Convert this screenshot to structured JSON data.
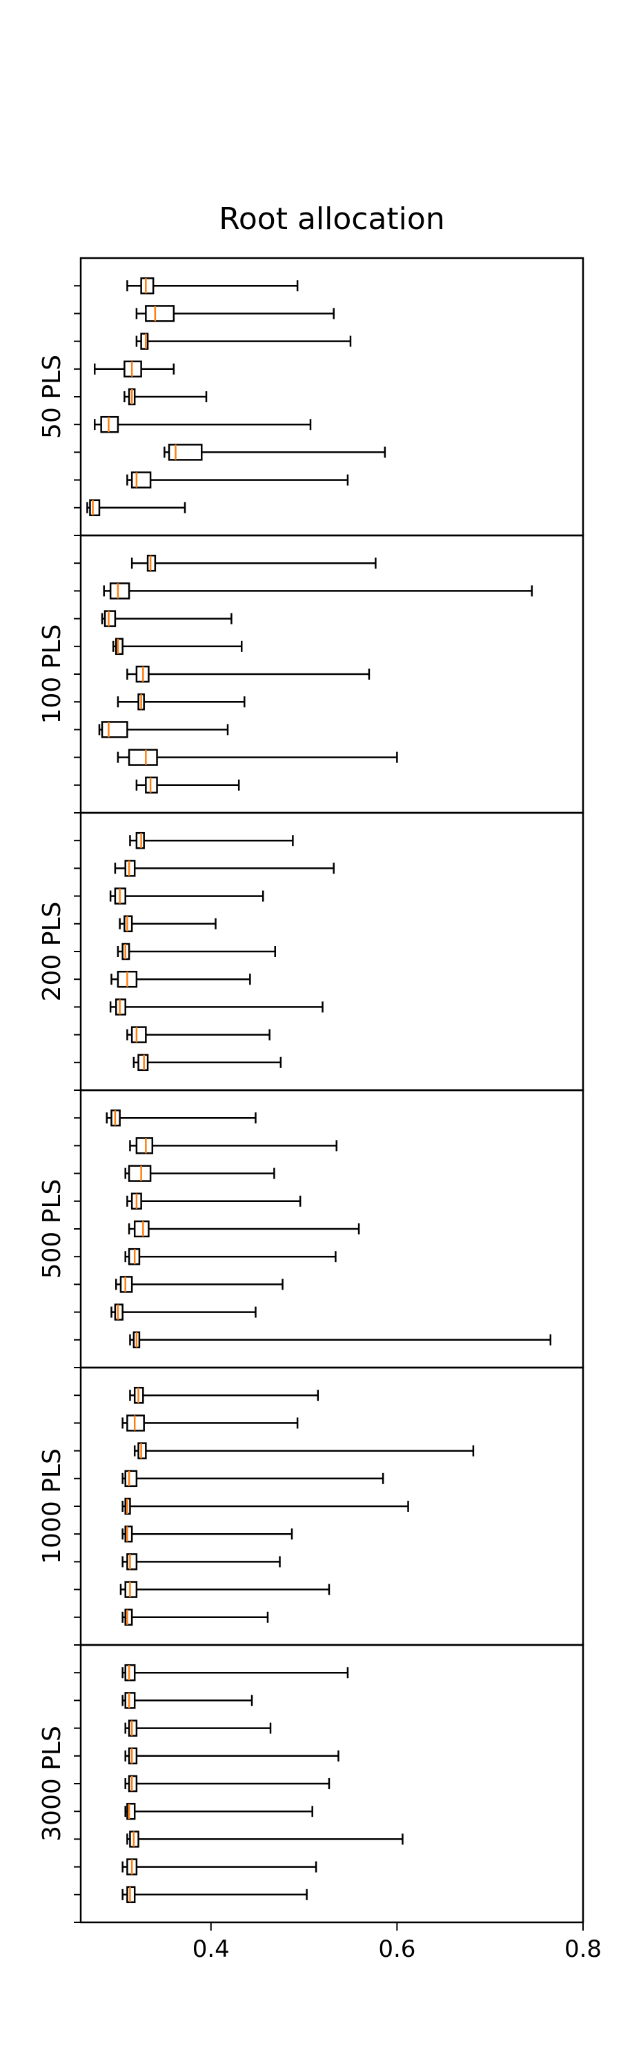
{
  "chart_data": {
    "type": "boxplot",
    "title": "Root allocation",
    "orientation": "horizontal",
    "xlim": [
      0.26,
      0.8
    ],
    "xticks": [
      0.4,
      0.6,
      0.8
    ],
    "xtick_labels": [
      "0.4",
      "0.6",
      "0.8"
    ],
    "median_color": "#ff7f0e",
    "box_color": "#000000",
    "panels": [
      {
        "name": "50 PLS",
        "boxes": [
          {
            "min": 0.31,
            "q1": 0.325,
            "median": 0.33,
            "q3": 0.338,
            "max": 0.493
          },
          {
            "min": 0.32,
            "q1": 0.33,
            "median": 0.34,
            "q3": 0.36,
            "max": 0.532
          },
          {
            "min": 0.32,
            "q1": 0.325,
            "median": 0.33,
            "q3": 0.332,
            "max": 0.55
          },
          {
            "min": 0.275,
            "q1": 0.307,
            "median": 0.315,
            "q3": 0.325,
            "max": 0.36
          },
          {
            "min": 0.307,
            "q1": 0.312,
            "median": 0.315,
            "q3": 0.318,
            "max": 0.395
          },
          {
            "min": 0.275,
            "q1": 0.282,
            "median": 0.29,
            "q3": 0.3,
            "max": 0.507
          },
          {
            "min": 0.35,
            "q1": 0.355,
            "median": 0.362,
            "q3": 0.39,
            "max": 0.587
          },
          {
            "min": 0.31,
            "q1": 0.315,
            "median": 0.32,
            "q3": 0.335,
            "max": 0.547
          },
          {
            "min": 0.267,
            "q1": 0.27,
            "median": 0.273,
            "q3": 0.28,
            "max": 0.372
          }
        ]
      },
      {
        "name": "100 PLS",
        "boxes": [
          {
            "min": 0.315,
            "q1": 0.332,
            "median": 0.335,
            "q3": 0.34,
            "max": 0.577
          },
          {
            "min": 0.285,
            "q1": 0.292,
            "median": 0.3,
            "q3": 0.312,
            "max": 0.745
          },
          {
            "min": 0.283,
            "q1": 0.286,
            "median": 0.29,
            "q3": 0.297,
            "max": 0.422
          },
          {
            "min": 0.295,
            "q1": 0.298,
            "median": 0.3,
            "q3": 0.305,
            "max": 0.433
          },
          {
            "min": 0.31,
            "q1": 0.32,
            "median": 0.327,
            "q3": 0.333,
            "max": 0.57
          },
          {
            "min": 0.3,
            "q1": 0.322,
            "median": 0.325,
            "q3": 0.328,
            "max": 0.436
          },
          {
            "min": 0.28,
            "q1": 0.283,
            "median": 0.29,
            "q3": 0.31,
            "max": 0.418
          },
          {
            "min": 0.3,
            "q1": 0.312,
            "median": 0.33,
            "q3": 0.342,
            "max": 0.6
          },
          {
            "min": 0.32,
            "q1": 0.33,
            "median": 0.335,
            "q3": 0.342,
            "max": 0.43
          }
        ]
      },
      {
        "name": "200 PLS",
        "boxes": [
          {
            "min": 0.313,
            "q1": 0.32,
            "median": 0.325,
            "q3": 0.328,
            "max": 0.488
          },
          {
            "min": 0.297,
            "q1": 0.308,
            "median": 0.312,
            "q3": 0.318,
            "max": 0.532
          },
          {
            "min": 0.292,
            "q1": 0.297,
            "median": 0.302,
            "q3": 0.308,
            "max": 0.456
          },
          {
            "min": 0.302,
            "q1": 0.307,
            "median": 0.31,
            "q3": 0.315,
            "max": 0.405
          },
          {
            "min": 0.3,
            "q1": 0.305,
            "median": 0.308,
            "q3": 0.312,
            "max": 0.469
          },
          {
            "min": 0.293,
            "q1": 0.3,
            "median": 0.31,
            "q3": 0.32,
            "max": 0.442
          },
          {
            "min": 0.292,
            "q1": 0.298,
            "median": 0.302,
            "q3": 0.308,
            "max": 0.52
          },
          {
            "min": 0.31,
            "q1": 0.315,
            "median": 0.32,
            "q3": 0.33,
            "max": 0.463
          },
          {
            "min": 0.317,
            "q1": 0.322,
            "median": 0.328,
            "q3": 0.332,
            "max": 0.475
          }
        ]
      },
      {
        "name": "500 PLS",
        "boxes": [
          {
            "min": 0.288,
            "q1": 0.293,
            "median": 0.297,
            "q3": 0.302,
            "max": 0.448
          },
          {
            "min": 0.313,
            "q1": 0.32,
            "median": 0.33,
            "q3": 0.337,
            "max": 0.535
          },
          {
            "min": 0.308,
            "q1": 0.312,
            "median": 0.325,
            "q3": 0.335,
            "max": 0.468
          },
          {
            "min": 0.31,
            "q1": 0.315,
            "median": 0.32,
            "q3": 0.325,
            "max": 0.496
          },
          {
            "min": 0.312,
            "q1": 0.318,
            "median": 0.327,
            "q3": 0.333,
            "max": 0.559
          },
          {
            "min": 0.308,
            "q1": 0.312,
            "median": 0.318,
            "q3": 0.323,
            "max": 0.534
          },
          {
            "min": 0.298,
            "q1": 0.303,
            "median": 0.308,
            "q3": 0.315,
            "max": 0.477
          },
          {
            "min": 0.293,
            "q1": 0.297,
            "median": 0.3,
            "q3": 0.305,
            "max": 0.448
          },
          {
            "min": 0.313,
            "q1": 0.317,
            "median": 0.32,
            "q3": 0.323,
            "max": 0.765
          }
        ]
      },
      {
        "name": "1000 PLS",
        "boxes": [
          {
            "min": 0.313,
            "q1": 0.318,
            "median": 0.322,
            "q3": 0.327,
            "max": 0.515
          },
          {
            "min": 0.305,
            "q1": 0.31,
            "median": 0.318,
            "q3": 0.328,
            "max": 0.493
          },
          {
            "min": 0.318,
            "q1": 0.322,
            "median": 0.325,
            "q3": 0.33,
            "max": 0.682
          },
          {
            "min": 0.305,
            "q1": 0.308,
            "median": 0.312,
            "q3": 0.32,
            "max": 0.585
          },
          {
            "min": 0.305,
            "q1": 0.308,
            "median": 0.31,
            "q3": 0.313,
            "max": 0.612
          },
          {
            "min": 0.305,
            "q1": 0.308,
            "median": 0.31,
            "q3": 0.315,
            "max": 0.487
          },
          {
            "min": 0.305,
            "q1": 0.31,
            "median": 0.313,
            "q3": 0.32,
            "max": 0.474
          },
          {
            "min": 0.303,
            "q1": 0.308,
            "median": 0.313,
            "q3": 0.32,
            "max": 0.527
          },
          {
            "min": 0.305,
            "q1": 0.308,
            "median": 0.31,
            "q3": 0.315,
            "max": 0.461
          }
        ]
      },
      {
        "name": "3000 PLS",
        "boxes": [
          {
            "min": 0.305,
            "q1": 0.308,
            "median": 0.312,
            "q3": 0.318,
            "max": 0.547
          },
          {
            "min": 0.305,
            "q1": 0.308,
            "median": 0.312,
            "q3": 0.318,
            "max": 0.444
          },
          {
            "min": 0.308,
            "q1": 0.312,
            "median": 0.315,
            "q3": 0.32,
            "max": 0.464
          },
          {
            "min": 0.308,
            "q1": 0.312,
            "median": 0.315,
            "q3": 0.32,
            "max": 0.537
          },
          {
            "min": 0.308,
            "q1": 0.312,
            "median": 0.315,
            "q3": 0.32,
            "max": 0.527
          },
          {
            "min": 0.308,
            "q1": 0.31,
            "median": 0.312,
            "q3": 0.318,
            "max": 0.509
          },
          {
            "min": 0.31,
            "q1": 0.313,
            "median": 0.317,
            "q3": 0.322,
            "max": 0.606
          },
          {
            "min": 0.305,
            "q1": 0.31,
            "median": 0.315,
            "q3": 0.32,
            "max": 0.513
          },
          {
            "min": 0.305,
            "q1": 0.31,
            "median": 0.313,
            "q3": 0.318,
            "max": 0.503
          }
        ]
      }
    ]
  }
}
